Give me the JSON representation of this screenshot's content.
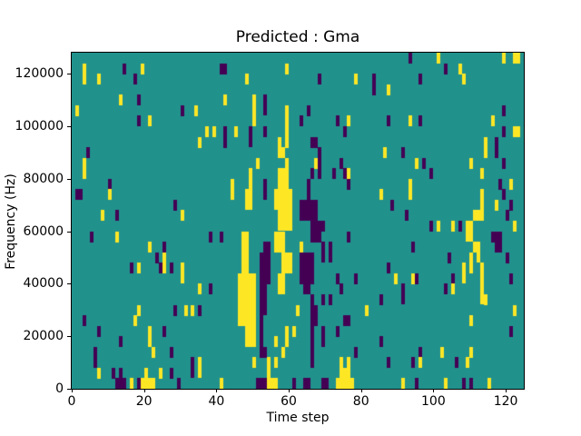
{
  "chart_data": {
    "type": "heatmap",
    "title": "Predicted : Gma",
    "xlabel": "Time step",
    "ylabel": "Frequency (Hz)",
    "x_ticks": [
      0,
      20,
      40,
      60,
      80,
      100,
      120
    ],
    "y_ticks": [
      0,
      20000,
      40000,
      60000,
      80000,
      100000,
      120000
    ],
    "x_range": [
      0,
      125
    ],
    "y_range": [
      0,
      128000
    ],
    "legend": "none",
    "grid_lines": "off",
    "colors": {
      "background_mid": "#21918c",
      "high": "#fde725",
      "low": "#440154",
      "spine": "#000000",
      "text": "#000000",
      "figure_background": "#ffffff"
    },
    "cell_grid": {
      "cols": 125,
      "rows": 32,
      "cell_format": "[col, row, colspan, rowspan], row 0 = top (128000 Hz), col 0 = time step 0"
    },
    "cells": {
      "yellow": [
        [
          3,
          1
        ],
        [
          3,
          2
        ],
        [
          7,
          2
        ],
        [
          19,
          1
        ],
        [
          13,
          4
        ],
        [
          1,
          5
        ],
        [
          21,
          6
        ],
        [
          34,
          5
        ],
        [
          37,
          7
        ],
        [
          39,
          7
        ],
        [
          35,
          8
        ],
        [
          3,
          10
        ],
        [
          48,
          2
        ],
        [
          59,
          1
        ],
        [
          78,
          2
        ],
        [
          42,
          4
        ],
        [
          50,
          4,
          1,
          3
        ],
        [
          59,
          5,
          1,
          3
        ],
        [
          76,
          6
        ],
        [
          45,
          7
        ],
        [
          57,
          8
        ],
        [
          59,
          8
        ],
        [
          57,
          9
        ],
        [
          58,
          9
        ],
        [
          51,
          10
        ],
        [
          59,
          10
        ],
        [
          67,
          10
        ],
        [
          101,
          0
        ],
        [
          119,
          0
        ],
        [
          122,
          0,
          2,
          1
        ],
        [
          107,
          1
        ],
        [
          108,
          2
        ],
        [
          87,
          3
        ],
        [
          93,
          6
        ],
        [
          116,
          6
        ],
        [
          122,
          7,
          2,
          1
        ],
        [
          114,
          8,
          1,
          2
        ],
        [
          86,
          9
        ],
        [
          95,
          10
        ],
        [
          110,
          10
        ],
        [
          3,
          11
        ],
        [
          10,
          13
        ],
        [
          8,
          15
        ],
        [
          30,
          15
        ],
        [
          12,
          17
        ],
        [
          21,
          18
        ],
        [
          25,
          19,
          1,
          2
        ],
        [
          18,
          20
        ],
        [
          30,
          20,
          1,
          2
        ],
        [
          44,
          12,
          1,
          2
        ],
        [
          49,
          11,
          1,
          3
        ],
        [
          48,
          13,
          2,
          2
        ],
        [
          57,
          11,
          3,
          2
        ],
        [
          56,
          13,
          5,
          2
        ],
        [
          57,
          15,
          4,
          2
        ],
        [
          56,
          17,
          3,
          2
        ],
        [
          47,
          17,
          2,
          4
        ],
        [
          58,
          19,
          3,
          2
        ],
        [
          63,
          18
        ],
        [
          76,
          11
        ],
        [
          46,
          21,
          2,
          5
        ],
        [
          48,
          21,
          3,
          7
        ],
        [
          57,
          21,
          2,
          2
        ],
        [
          50,
          29
        ],
        [
          54,
          29,
          1,
          2
        ],
        [
          56,
          29
        ],
        [
          59,
          26,
          1,
          2
        ],
        [
          61,
          26
        ],
        [
          56,
          27
        ],
        [
          58,
          28
        ],
        [
          62,
          24
        ],
        [
          81,
          24
        ],
        [
          74,
          29
        ],
        [
          76,
          29
        ],
        [
          74,
          30,
          3,
          1
        ],
        [
          73,
          31,
          5,
          1
        ],
        [
          54,
          31,
          3,
          1
        ],
        [
          113,
          11
        ],
        [
          121,
          12
        ],
        [
          93,
          12,
          1,
          2
        ],
        [
          85,
          13
        ],
        [
          113,
          13,
          1,
          2
        ],
        [
          117,
          14
        ],
        [
          111,
          15,
          3,
          1
        ],
        [
          101,
          16
        ],
        [
          105,
          16
        ],
        [
          109,
          16,
          2,
          2
        ],
        [
          122,
          16
        ],
        [
          111,
          18
        ],
        [
          112,
          18,
          1,
          2
        ],
        [
          110,
          19,
          1,
          2
        ],
        [
          113,
          20,
          1,
          2
        ],
        [
          108,
          20,
          1,
          2
        ],
        [
          89,
          21
        ],
        [
          94,
          21
        ],
        [
          35,
          22
        ],
        [
          18,
          24
        ],
        [
          31,
          24
        ],
        [
          33,
          24
        ],
        [
          17,
          25
        ],
        [
          21,
          26,
          1,
          2
        ],
        [
          22,
          28
        ],
        [
          35,
          29,
          1,
          2
        ],
        [
          7,
          30
        ],
        [
          24,
          30
        ],
        [
          20,
          30
        ],
        [
          16,
          31
        ],
        [
          19,
          31,
          4,
          1
        ],
        [
          41,
          31
        ],
        [
          105,
          22
        ],
        [
          113,
          22,
          1,
          2
        ],
        [
          114,
          23
        ],
        [
          122,
          24
        ],
        [
          110,
          25
        ],
        [
          102,
          28
        ],
        [
          110,
          28
        ],
        [
          96,
          29
        ],
        [
          109,
          29
        ],
        [
          91,
          31
        ],
        [
          103,
          31
        ],
        [
          115,
          31
        ]
      ],
      "purple": [
        [
          14,
          1
        ],
        [
          17,
          2
        ],
        [
          18,
          4
        ],
        [
          18,
          6
        ],
        [
          30,
          5
        ],
        [
          4,
          9
        ],
        [
          41,
          1
        ],
        [
          42,
          1
        ],
        [
          68,
          2
        ],
        [
          83,
          2
        ],
        [
          53,
          4,
          1,
          2
        ],
        [
          65,
          5
        ],
        [
          63,
          6
        ],
        [
          73,
          6
        ],
        [
          75,
          7
        ],
        [
          42,
          7
        ],
        [
          49,
          7,
          1,
          2
        ],
        [
          53,
          7
        ],
        [
          42,
          8
        ],
        [
          66,
          8
        ],
        [
          67,
          8
        ],
        [
          68,
          9
        ],
        [
          74,
          10
        ],
        [
          68,
          10
        ],
        [
          93,
          0
        ],
        [
          103,
          1
        ],
        [
          96,
          2
        ],
        [
          83,
          3
        ],
        [
          119,
          5
        ],
        [
          87,
          6
        ],
        [
          96,
          6
        ],
        [
          119,
          7
        ],
        [
          117,
          8,
          1,
          2
        ],
        [
          91,
          9
        ],
        [
          97,
          10
        ],
        [
          119,
          10
        ],
        [
          10,
          12
        ],
        [
          1,
          13,
          2,
          1
        ],
        [
          12,
          15
        ],
        [
          28,
          14
        ],
        [
          5,
          17
        ],
        [
          38,
          17
        ],
        [
          41,
          17
        ],
        [
          25,
          18
        ],
        [
          23,
          19
        ],
        [
          24,
          20
        ],
        [
          16,
          20
        ],
        [
          27,
          20
        ],
        [
          66,
          11
        ],
        [
          68,
          11
        ],
        [
          72,
          11
        ],
        [
          75,
          11
        ],
        [
          65,
          12,
          1,
          3
        ],
        [
          76,
          12
        ],
        [
          53,
          12,
          1,
          2
        ],
        [
          63,
          14,
          5,
          2
        ],
        [
          66,
          16,
          4,
          1
        ],
        [
          66,
          17,
          3,
          1
        ],
        [
          76,
          17
        ],
        [
          69,
          18,
          1,
          2
        ],
        [
          71,
          18,
          1,
          2
        ],
        [
          63,
          19,
          4,
          3
        ],
        [
          53,
          18,
          2,
          2
        ],
        [
          52,
          19,
          3,
          3
        ],
        [
          52,
          21,
          2,
          4
        ],
        [
          52,
          25,
          1,
          4
        ],
        [
          64,
          22,
          2,
          1
        ],
        [
          66,
          23
        ],
        [
          73,
          21
        ],
        [
          78,
          21
        ],
        [
          74,
          22
        ],
        [
          69,
          23
        ],
        [
          71,
          23
        ],
        [
          75,
          25,
          2,
          1
        ],
        [
          73,
          26
        ],
        [
          66,
          24,
          2,
          2
        ],
        [
          66,
          26,
          1,
          4
        ],
        [
          69,
          26,
          1,
          2
        ],
        [
          78,
          28
        ],
        [
          52,
          28,
          2,
          1
        ],
        [
          61,
          31
        ],
        [
          64,
          31,
          2,
          1
        ],
        [
          69,
          31,
          2,
          1
        ],
        [
          51,
          31,
          3,
          1
        ],
        [
          99,
          11
        ],
        [
          118,
          12
        ],
        [
          88,
          14
        ],
        [
          119,
          13
        ],
        [
          92,
          15
        ],
        [
          120,
          15
        ],
        [
          121,
          14
        ],
        [
          99,
          16
        ],
        [
          107,
          16
        ],
        [
          116,
          17,
          3,
          1
        ],
        [
          117,
          18,
          2,
          1
        ],
        [
          94,
          18
        ],
        [
          104,
          19
        ],
        [
          87,
          20
        ],
        [
          120,
          19
        ],
        [
          121,
          21
        ],
        [
          105,
          21
        ],
        [
          38,
          22
        ],
        [
          28,
          24
        ],
        [
          35,
          24
        ],
        [
          3,
          25
        ],
        [
          7,
          26
        ],
        [
          25,
          26
        ],
        [
          13,
          27
        ],
        [
          6,
          28
        ],
        [
          27,
          28
        ],
        [
          33,
          29,
          1,
          2
        ],
        [
          6,
          29
        ],
        [
          11,
          30
        ],
        [
          13,
          30
        ],
        [
          12,
          31,
          3,
          1
        ],
        [
          18,
          31
        ],
        [
          27,
          30
        ],
        [
          29,
          31
        ],
        [
          95,
          21
        ],
        [
          91,
          22,
          1,
          2
        ],
        [
          103,
          22
        ],
        [
          85,
          23
        ],
        [
          121,
          26
        ],
        [
          85,
          27
        ],
        [
          96,
          28
        ],
        [
          106,
          29
        ],
        [
          94,
          29
        ],
        [
          87,
          29
        ],
        [
          95,
          31
        ],
        [
          108,
          31
        ],
        [
          110,
          31
        ]
      ]
    }
  }
}
